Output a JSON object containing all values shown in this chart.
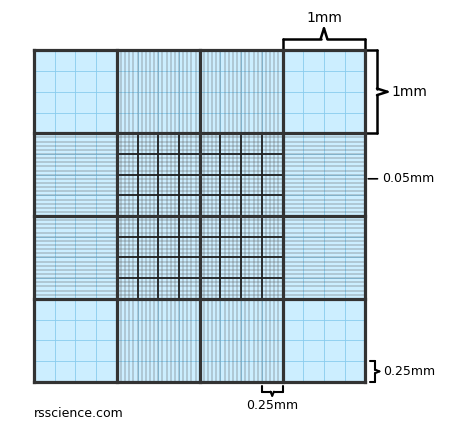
{
  "bg_color": "#cceeff",
  "white_bg": "#ffffff",
  "grid_color_light": "#88ccee",
  "grid_color_dark": "#333333",
  "fig_width": 4.74,
  "fig_height": 4.28,
  "watermark": "rsscience.com",
  "annotation_1mm_top": "1mm",
  "annotation_1mm_right": "1mm",
  "annotation_025mm_right": "0.25mm",
  "annotation_025mm_bottom": "0.25mm",
  "annotation_005mm": "0.05mm"
}
